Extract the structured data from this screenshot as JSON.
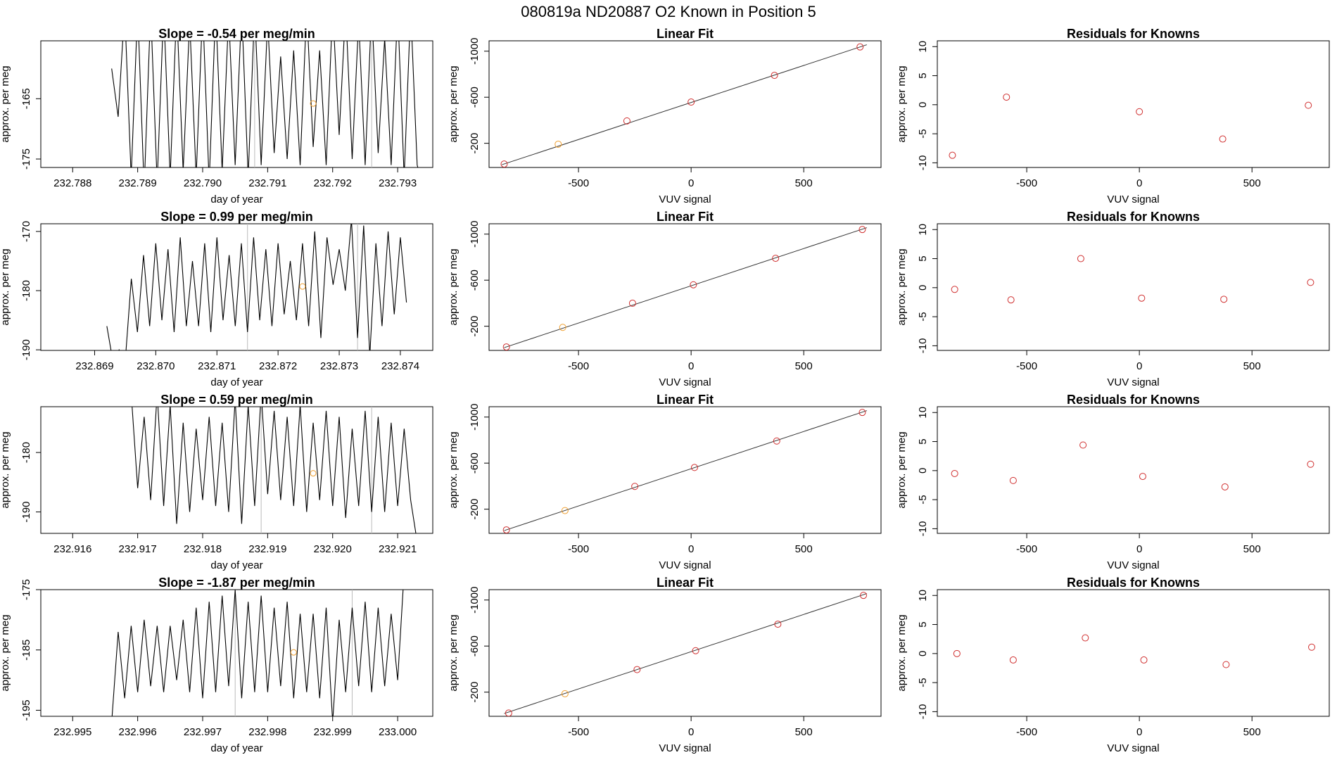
{
  "title": "080819a     ND20887   O2 Known in Position  5",
  "chart_data": [
    {
      "type": "line",
      "title": "Slope =  -0.54  per meg/min",
      "xlabel": "day of year",
      "ylabel": "approx. per meg",
      "xlim": [
        232.78751,
        232.79354
      ],
      "ylim": [
        -176.4,
        -155.4
      ],
      "xticks": [
        232.788,
        232.789,
        {
          "value": 232.79,
          "label": "232.790"
        },
        232.791,
        232.792,
        232.793
      ],
      "yticks": [
        -175,
        -165
      ],
      "color": "#000000",
      "x": [
        232.7886,
        232.7887,
        232.7888,
        232.7889,
        232.789,
        232.7891,
        232.7892,
        232.7893,
        232.7894,
        232.7895,
        232.7896,
        232.7897,
        232.7898,
        232.7899,
        232.79,
        232.7901,
        232.7902,
        232.7903,
        232.7904,
        232.7905,
        232.7906,
        232.7907,
        232.7908,
        232.7909,
        232.791,
        232.7911,
        232.7912,
        232.7913,
        232.7914,
        232.7915,
        232.7916,
        232.7917,
        232.7918,
        232.7919,
        232.792,
        232.7921,
        232.7922,
        232.7923,
        232.7924,
        232.7925,
        232.7926,
        232.7927,
        232.7928,
        232.7929,
        232.793,
        232.7931,
        232.7932,
        232.7933,
        232.7934
      ],
      "values": [
        -160,
        -168,
        -150,
        -178,
        -150,
        -180,
        -150,
        -179,
        -150,
        -178,
        -150,
        -177,
        -152,
        -178,
        -150,
        -179,
        -150,
        -177,
        -151,
        -176,
        -150,
        -178,
        -150,
        -176,
        -152,
        -174,
        -158,
        -175,
        -157,
        -176,
        -150,
        -173,
        -157,
        -176,
        -150,
        -171,
        -150,
        -175,
        -152,
        -176,
        -150,
        -174,
        -155,
        -176,
        -150,
        -178,
        -150,
        -176,
        -180
      ],
      "vlines": [
        232.7908,
        232.7926
      ],
      "vline_color": "#bbbbbb",
      "marker": {
        "x": 232.7917,
        "y": -165.8,
        "color": "#f0a030"
      }
    },
    {
      "type": "scatter",
      "title": "Linear Fit",
      "xlabel": "VUV signal",
      "ylabel": "approx. per meg",
      "xlim": [
        -897,
        843
      ],
      "ylim": [
        10,
        -1090
      ],
      "xticks": [
        -500,
        0,
        500
      ],
      "yticks": [
        -200,
        -600,
        -1000
      ],
      "x": [
        -830,
        -590,
        -285,
        0,
        370,
        750
      ],
      "values": [
        -20,
        -192,
        -394,
        -558,
        -790,
        -1037
      ],
      "colors": [
        "#d03030",
        "#f0a030",
        "#d03030",
        "#d03030",
        "#d03030",
        "#d03030"
      ],
      "fit": {
        "x": [
          -840,
          780
        ],
        "y": [
          -14,
          -1056
        ],
        "color": "#333333"
      }
    },
    {
      "type": "scatter",
      "title": "Residuals for Knowns",
      "xlabel": "VUV signal",
      "ylabel": "approx. per meg",
      "xlim": [
        -897,
        843
      ],
      "ylim": [
        -10.8,
        11
      ],
      "xticks": [
        -500,
        0,
        500
      ],
      "yticks": [
        -10,
        -5,
        0,
        5,
        10
      ],
      "x": [
        -830,
        -590,
        0,
        370,
        750
      ],
      "values": [
        -8.7,
        1.3,
        -1.2,
        -5.9,
        -0.1
      ],
      "colors": [
        "#d03030",
        "#d03030",
        "#d03030",
        "#d03030",
        "#d03030"
      ]
    },
    {
      "type": "line",
      "title": "Slope =  0.99  per meg/min",
      "xlabel": "day of year",
      "ylabel": "approx. per meg",
      "xlim": [
        232.86812,
        232.87453
      ],
      "ylim": [
        -190.1,
        -168.7
      ],
      "xticks": [
        232.869,
        {
          "value": 232.87,
          "label": "232.870"
        },
        232.871,
        232.872,
        232.873,
        232.874
      ],
      "yticks": [
        -190,
        -180,
        -170
      ],
      "color": "#000000",
      "x": [
        232.8692,
        232.8693,
        232.8694,
        232.8695,
        232.8696,
        232.8697,
        232.8698,
        232.8699,
        232.87,
        232.8701,
        232.8702,
        232.8703,
        232.8704,
        232.8705,
        232.8706,
        232.8707,
        232.8708,
        232.8709,
        232.871,
        232.8711,
        232.8712,
        232.8713,
        232.8714,
        232.8715,
        232.8716,
        232.8717,
        232.8718,
        232.8719,
        232.872,
        232.8721,
        232.8722,
        232.8723,
        232.8724,
        232.8725,
        232.8726,
        232.8727,
        232.8728,
        232.8729,
        232.873,
        232.8731,
        232.8732,
        232.8733,
        232.8734,
        232.8735,
        232.8736,
        232.8737,
        232.8738,
        232.8739,
        232.874,
        232.8741
      ],
      "values": [
        -186,
        -192,
        -190,
        -192,
        -178,
        -187,
        -174,
        -186,
        -172,
        -185,
        -173,
        -187,
        -171,
        -186,
        -175,
        -186,
        -172,
        -187,
        -171,
        -185,
        -174,
        -186,
        -172,
        -187,
        -171,
        -185,
        -173,
        -186,
        -172,
        -184,
        -175,
        -185,
        -172,
        -186,
        -170,
        -188,
        -171,
        -179,
        -173,
        -180,
        -168,
        -188,
        -169,
        -191,
        -172,
        -186,
        -170,
        -184,
        -171,
        -182
      ],
      "vlines": [
        232.8715,
        232.8733
      ],
      "vline_color": "#bbbbbb",
      "marker": {
        "x": 232.8724,
        "y": -179.3,
        "color": "#f0a030"
      }
    },
    {
      "type": "scatter",
      "title": "Linear Fit",
      "xlabel": "VUV signal",
      "ylabel": "approx. per meg",
      "xlim": [
        -897,
        843
      ],
      "ylim": [
        10,
        -1090
      ],
      "xticks": [
        -500,
        0,
        500
      ],
      "yticks": [
        -200,
        -600,
        -1000
      ],
      "x": [
        -820,
        -570,
        -260,
        10,
        375,
        760
      ],
      "values": [
        -20,
        -190,
        -400,
        -560,
        -790,
        -1040
      ],
      "colors": [
        "#d03030",
        "#f0a030",
        "#d03030",
        "#d03030",
        "#d03030",
        "#d03030"
      ],
      "fit": {
        "x": [
          -830,
          780
        ],
        "y": [
          -14,
          -1056
        ],
        "color": "#333333"
      }
    },
    {
      "type": "scatter",
      "title": "Residuals for Knowns",
      "xlabel": "VUV signal",
      "ylabel": "approx. per meg",
      "xlim": [
        -897,
        843
      ],
      "ylim": [
        -10.8,
        11
      ],
      "xticks": [
        -500,
        0,
        500
      ],
      "yticks": [
        -10,
        -5,
        0,
        5,
        10
      ],
      "x": [
        -820,
        -570,
        -260,
        10,
        375,
        760
      ],
      "values": [
        -0.3,
        -2.1,
        5.0,
        -1.8,
        -2.0,
        0.9
      ],
      "colors": [
        "#d03030",
        "#d03030",
        "#d03030",
        "#d03030",
        "#d03030",
        "#d03030"
      ]
    },
    {
      "type": "line",
      "title": "Slope =  0.59  per meg/min",
      "xlabel": "day of year",
      "ylabel": "approx. per meg",
      "xlim": [
        232.91551,
        232.92154
      ],
      "ylim": [
        -193.6,
        -172.3
      ],
      "xticks": [
        232.916,
        232.917,
        232.918,
        232.919,
        {
          "value": 232.92,
          "label": "232.920"
        },
        232.921
      ],
      "yticks": [
        -190,
        -180
      ],
      "color": "#000000",
      "x": [
        232.9167,
        232.9168,
        232.9169,
        232.917,
        232.9171,
        232.9172,
        232.9173,
        232.9174,
        232.9175,
        232.9176,
        232.9177,
        232.9178,
        232.9179,
        232.918,
        232.9181,
        232.9182,
        232.9183,
        232.9184,
        232.9185,
        232.9186,
        232.9187,
        232.9188,
        232.9189,
        232.919,
        232.9191,
        232.9192,
        232.9193,
        232.9194,
        232.9195,
        232.9196,
        232.9197,
        232.9198,
        232.9199,
        232.92,
        232.9201,
        232.9202,
        232.9203,
        232.9204,
        232.9205,
        232.9206,
        232.9207,
        232.9208,
        232.9209,
        232.921,
        232.9211,
        232.9212,
        232.9213
      ],
      "values": [
        -172,
        -172,
        -170,
        -186,
        -174,
        -188,
        -170,
        -189,
        -172,
        -192,
        -175,
        -190,
        -176,
        -188,
        -174,
        -189,
        -175,
        -190,
        -171,
        -192,
        -172,
        -189,
        -170,
        -187,
        -173,
        -188,
        -174,
        -189,
        -172,
        -190,
        -175,
        -188,
        -173,
        -189,
        -174,
        -191,
        -176,
        -189,
        -173,
        -190,
        -174,
        -190,
        -175,
        -189,
        -176,
        -188,
        -195
      ],
      "vlines": [
        232.9189,
        232.9206
      ],
      "vline_color": "#bbbbbb",
      "marker": {
        "x": 232.9197,
        "y": -183.5,
        "color": "#f0a030"
      }
    },
    {
      "type": "scatter",
      "title": "Linear Fit",
      "xlabel": "VUV signal",
      "ylabel": "approx. per meg",
      "xlim": [
        -897,
        843
      ],
      "ylim": [
        10,
        -1090
      ],
      "xticks": [
        -500,
        0,
        500
      ],
      "yticks": [
        -200,
        -600,
        -1000
      ],
      "x": [
        -820,
        -560,
        -250,
        15,
        380,
        760
      ],
      "values": [
        -20,
        -188,
        -398,
        -562,
        -792,
        -1040
      ],
      "colors": [
        "#d03030",
        "#f0a030",
        "#d03030",
        "#d03030",
        "#d03030",
        "#d03030"
      ],
      "fit": {
        "x": [
          -830,
          780
        ],
        "y": [
          -14,
          -1056
        ],
        "color": "#333333"
      }
    },
    {
      "type": "scatter",
      "title": "Residuals for Knowns",
      "xlabel": "VUV signal",
      "ylabel": "approx. per meg",
      "xlim": [
        -897,
        843
      ],
      "ylim": [
        -10.8,
        11
      ],
      "xticks": [
        -500,
        0,
        500
      ],
      "yticks": [
        -10,
        -5,
        0,
        5,
        10
      ],
      "x": [
        -820,
        -560,
        -250,
        15,
        380,
        760
      ],
      "values": [
        -0.5,
        -1.7,
        4.4,
        -1.0,
        -2.8,
        1.1
      ],
      "colors": [
        "#d03030",
        "#d03030",
        "#d03030",
        "#d03030",
        "#d03030",
        "#d03030"
      ]
    },
    {
      "type": "line",
      "title": "Slope =  -1.87  per meg/min",
      "xlabel": "day of year",
      "ylabel": "approx. per meg",
      "xlim": [
        232.99451,
        233.00054
      ],
      "ylim": [
        -196,
        -175
      ],
      "xticks": [
        232.995,
        232.996,
        232.997,
        232.998,
        232.999,
        {
          "value": 233,
          "label": "233.000"
        }
      ],
      "yticks": [
        -195,
        -185,
        -175
      ],
      "color": "#000000",
      "x": [
        232.9956,
        232.9957,
        232.9958,
        232.9959,
        232.996,
        232.9961,
        232.9962,
        232.9963,
        232.9964,
        232.9965,
        232.9966,
        232.9967,
        232.9968,
        232.9969,
        232.997,
        232.9971,
        232.9972,
        232.9973,
        232.9974,
        232.9975,
        232.9976,
        232.9977,
        232.9978,
        232.9979,
        232.998,
        232.9981,
        232.9982,
        232.9983,
        232.9984,
        232.9985,
        232.9986,
        232.9987,
        232.9988,
        232.9989,
        232.999,
        232.9991,
        232.9992,
        232.9993,
        232.9994,
        232.9995,
        232.9996,
        232.9997,
        232.9998,
        232.9999,
        233.0,
        233.0001
      ],
      "values": [
        -197,
        -182,
        -193,
        -181,
        -192,
        -180,
        -191,
        -181,
        -192,
        -181,
        -190,
        -180,
        -192,
        -178,
        -193,
        -177,
        -192,
        -176,
        -191,
        -175,
        -193,
        -177,
        -192,
        -176,
        -192,
        -178,
        -191,
        -177,
        -193,
        -179,
        -192,
        -179,
        -193,
        -178,
        -197,
        -180,
        -192,
        -178,
        -191,
        -177,
        -192,
        -178,
        -191,
        -179,
        -190,
        -172
      ],
      "vlines": [
        232.9975,
        232.9993
      ],
      "vline_color": "#bbbbbb",
      "marker": {
        "x": 232.9984,
        "y": -185.4,
        "color": "#f0a030"
      }
    },
    {
      "type": "scatter",
      "title": "Linear Fit",
      "xlabel": "VUV signal",
      "ylabel": "approx. per meg",
      "xlim": [
        -897,
        843
      ],
      "ylim": [
        10,
        -1090
      ],
      "xticks": [
        -500,
        0,
        500
      ],
      "yticks": [
        -200,
        -600,
        -1000
      ],
      "x": [
        -810,
        -560,
        -240,
        20,
        385,
        765
      ],
      "values": [
        -18,
        -186,
        -396,
        -560,
        -790,
        -1040
      ],
      "colors": [
        "#d03030",
        "#f0a030",
        "#d03030",
        "#d03030",
        "#d03030",
        "#d03030"
      ],
      "fit": {
        "x": [
          -830,
          780
        ],
        "y": [
          -14,
          -1056
        ],
        "color": "#333333"
      }
    },
    {
      "type": "scatter",
      "title": "Residuals for Knowns",
      "xlabel": "VUV signal",
      "ylabel": "approx. per meg",
      "xlim": [
        -897,
        843
      ],
      "ylim": [
        -10.8,
        11
      ],
      "xticks": [
        -500,
        0,
        500
      ],
      "yticks": [
        -10,
        -5,
        0,
        5,
        10
      ],
      "x": [
        -810,
        -560,
        -240,
        20,
        385,
        765
      ],
      "values": [
        0.0,
        -1.1,
        2.7,
        -1.1,
        -1.9,
        1.1
      ],
      "colors": [
        "#d03030",
        "#d03030",
        "#d03030",
        "#d03030",
        "#d03030",
        "#d03030"
      ]
    }
  ]
}
